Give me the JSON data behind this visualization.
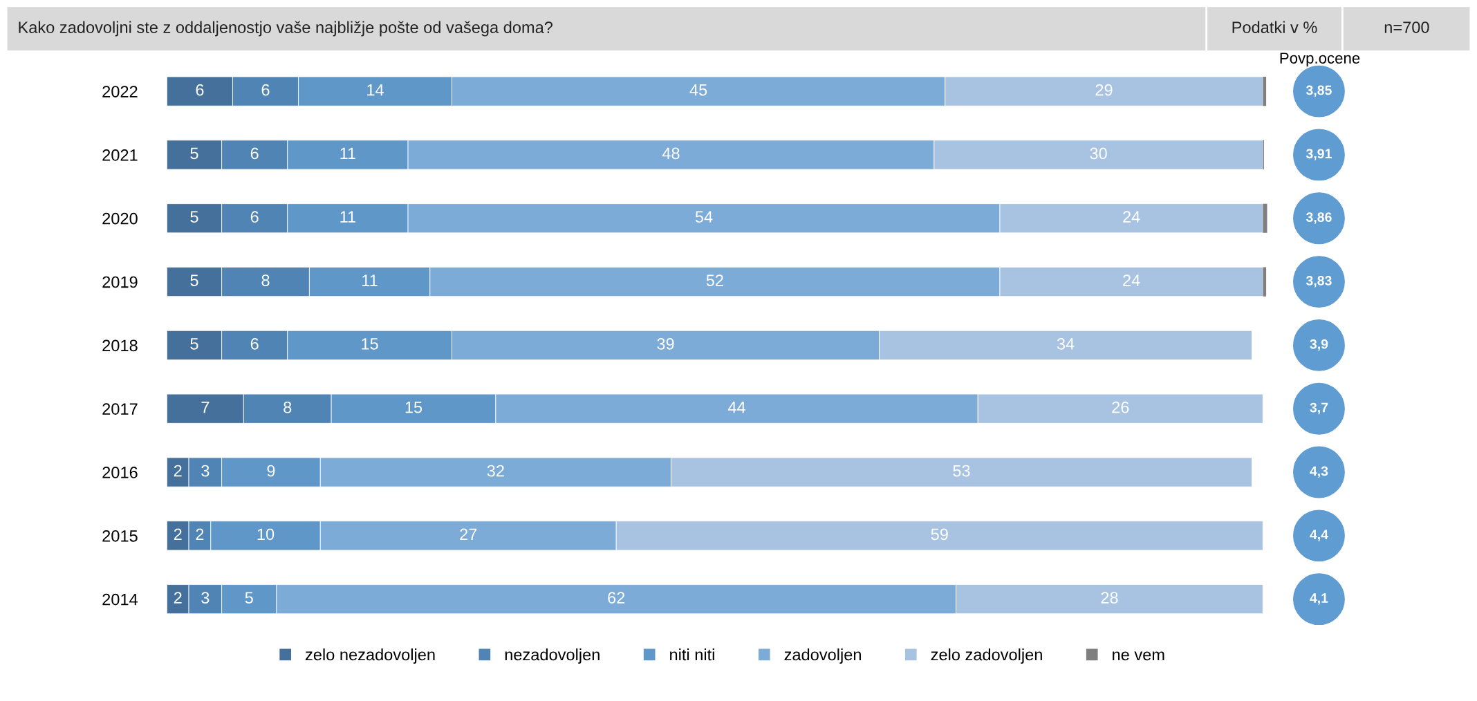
{
  "chart_data": [
    {
      "type": "bar",
      "orientation": "horizontal",
      "stacked": true,
      "title": "Kako zadovoljni ste z oddaljenostjo vaše najbližje pošte od vašega doma?",
      "annotations": [
        "Podatki v %",
        "n=700"
      ],
      "categories": [
        "2022",
        "2021",
        "2020",
        "2019",
        "2018",
        "2017",
        "2016",
        "2015",
        "2014"
      ],
      "legend": "bottom",
      "grid": false,
      "series": [
        {
          "name": "zelo nezadovoljen",
          "color": "#44709b",
          "values": [
            6,
            5,
            5,
            5,
            5,
            7,
            2,
            2,
            2
          ],
          "value_labels": [
            "6",
            "5",
            "5",
            "5",
            "5",
            "7",
            "2",
            "2",
            "2"
          ]
        },
        {
          "name": "nezadovoljen",
          "color": "#5084b5",
          "values": [
            6,
            6,
            6,
            8,
            6,
            8,
            3,
            2,
            3
          ],
          "value_labels": [
            "6",
            "6",
            "6",
            "8",
            "6",
            "8",
            "3",
            "2",
            "3"
          ]
        },
        {
          "name": "niti niti",
          "color": "#5f97c9",
          "values": [
            14,
            11,
            11,
            11,
            15,
            15,
            9,
            10,
            5
          ],
          "value_labels": [
            "14",
            "11",
            "11",
            "11",
            "15",
            "15",
            "9",
            "10",
            "5"
          ]
        },
        {
          "name": "zadovoljen",
          "color": "#7dabd7",
          "values": [
            45,
            48,
            54,
            52,
            39,
            44,
            32,
            27,
            62
          ],
          "value_labels": [
            "45",
            "48",
            "54",
            "52",
            "39",
            "44",
            "32",
            "27",
            "62"
          ]
        },
        {
          "name": "zelo zadovoljen",
          "color": "#a8c3e1",
          "values": [
            29,
            30,
            24,
            24,
            34,
            26,
            53,
            59,
            28
          ],
          "value_labels": [
            "29",
            "30",
            "24",
            "24",
            "34",
            "26",
            "53",
            "59",
            "28"
          ]
        },
        {
          "name": "ne vem",
          "color": "#7f7f7f",
          "values": [
            0.3,
            0.1,
            0.4,
            0.3,
            null,
            null,
            null,
            null,
            null
          ],
          "value_labels": [
            null,
            null,
            null,
            null,
            null,
            null,
            null,
            null,
            null
          ]
        }
      ]
    },
    {
      "type": "other",
      "title": "Povp.ocene",
      "color": "#5f9cd2",
      "value_labels": [
        "3,85",
        "3,91",
        "3,86",
        "3,83",
        "3,9",
        "3,7",
        "4,3",
        "4,4",
        "4,1"
      ]
    }
  ]
}
